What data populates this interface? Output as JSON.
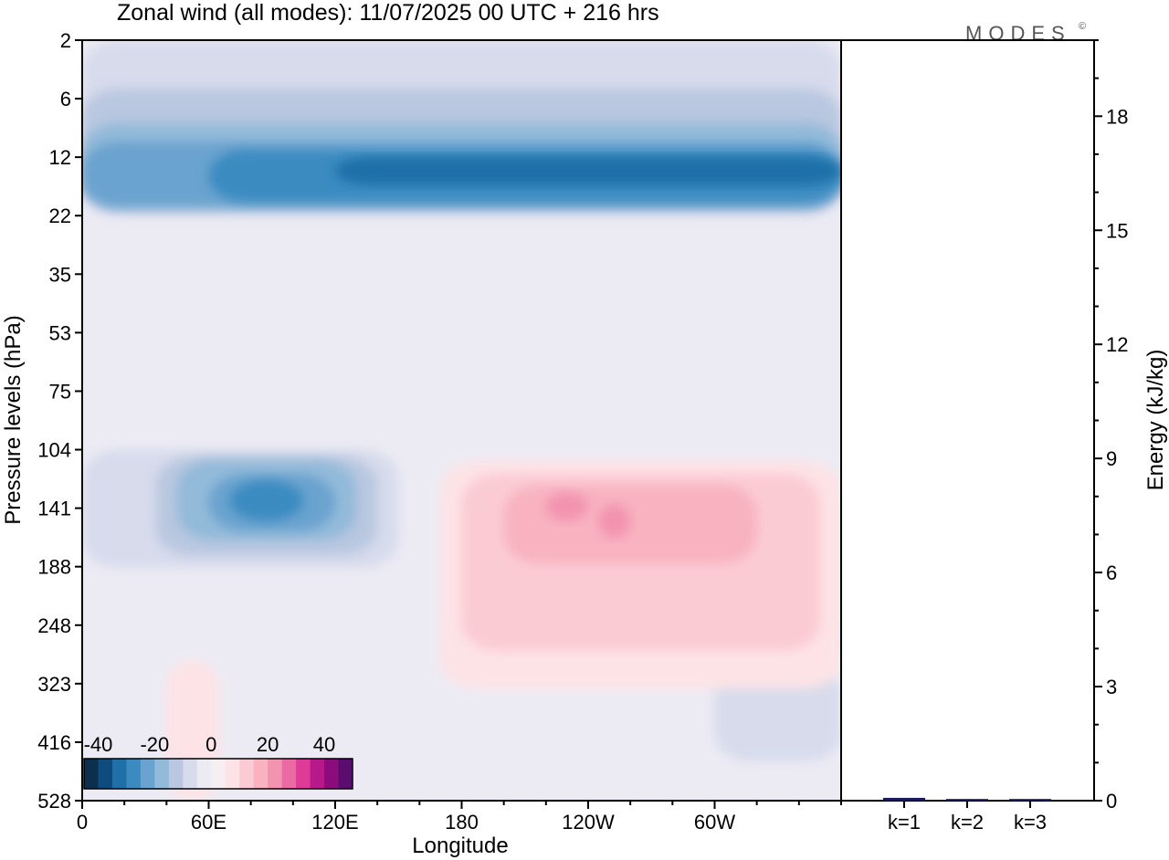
{
  "logo": "MODES",
  "logo_mark": "©",
  "chart_data": {
    "type": "heatmap",
    "title": "Zonal wind (all modes):  11/07/2025  00 UTC  + 216 hrs",
    "main_panel": {
      "xlabel": "Longitude",
      "ylabel": "Pressure levels (hPa)",
      "x_ticks": [
        "0",
        "60E",
        "120E",
        "180",
        "120W",
        "60W"
      ],
      "x_tick_degrees": [
        0,
        60,
        120,
        180,
        240,
        300
      ],
      "x_range_degrees": [
        0,
        360
      ],
      "y_ticks": [
        "2",
        "6",
        "12",
        "22",
        "35",
        "53",
        "75",
        "104",
        "141",
        "188",
        "248",
        "323",
        "416",
        "528"
      ],
      "colorbar": {
        "tick_labels": [
          "-40",
          "-20",
          "0",
          "20",
          "40"
        ],
        "tick_values": [
          -40,
          -20,
          0,
          20,
          40
        ],
        "levels": [
          -45,
          -40,
          -35,
          -30,
          -25,
          -20,
          -15,
          -10,
          -5,
          0,
          5,
          10,
          15,
          20,
          25,
          30,
          35,
          40,
          45,
          50
        ],
        "colors": [
          "#0b2f4d",
          "#0d4c7c",
          "#1f6fa8",
          "#3b8bc1",
          "#6aa3cf",
          "#93bad9",
          "#b9c7e0",
          "#d7dbec",
          "#ecebf4",
          "#f7eef2",
          "#fde3e6",
          "#fbcbd3",
          "#f8b2c0",
          "#f393b0",
          "#ec6aa3",
          "#dd3b97",
          "#b8188a",
          "#8c0c7e",
          "#5a0d6e"
        ]
      },
      "contours": [
        {
          "value": -5,
          "color": "#d7dbec",
          "regions": [
            {
              "lon": 0,
              "p": 2,
              "w": 360,
              "h": 20
            },
            {
              "lon": 0,
              "p": 104,
              "w": 150,
              "h": 85
            },
            {
              "lon": 300,
              "p": 300,
              "w": 60,
              "h": 150
            }
          ]
        },
        {
          "value": -10,
          "color": "#b9c7e0",
          "regions": [
            {
              "lon": 0,
              "p": 5,
              "w": 360,
              "h": 16
            },
            {
              "lon": 35,
              "p": 108,
              "w": 105,
              "h": 70
            }
          ]
        },
        {
          "value": -15,
          "color": "#93bad9",
          "regions": [
            {
              "lon": 0,
              "p": 8,
              "w": 360,
              "h": 12
            },
            {
              "lon": 45,
              "p": 110,
              "w": 85,
              "h": 55
            }
          ]
        },
        {
          "value": -20,
          "color": "#6aa3cf",
          "regions": [
            {
              "lon": 0,
              "p": 10,
              "w": 360,
              "h": 10
            },
            {
              "lon": 60,
              "p": 118,
              "w": 60,
              "h": 40
            }
          ]
        },
        {
          "value": -25,
          "color": "#3b8bc1",
          "regions": [
            {
              "lon": 60,
              "p": 11,
              "w": 300,
              "h": 8
            },
            {
              "lon": 70,
              "p": 122,
              "w": 35,
              "h": 28
            }
          ]
        },
        {
          "value": -30,
          "color": "#1f6fa8",
          "regions": [
            {
              "lon": 120,
              "p": 12,
              "w": 240,
              "h": 4
            }
          ]
        },
        {
          "value": 5,
          "color": "#fde3e6",
          "regions": [
            {
              "lon": 170,
              "p": 110,
              "w": 190,
              "h": 220
            },
            {
              "lon": 40,
              "p": 290,
              "w": 25,
              "h": 240
            }
          ]
        },
        {
          "value": 10,
          "color": "#fbcbd3",
          "regions": [
            {
              "lon": 180,
              "p": 118,
              "w": 170,
              "h": 160
            }
          ]
        },
        {
          "value": 15,
          "color": "#f8b2c0",
          "regions": [
            {
              "lon": 200,
              "p": 125,
              "w": 120,
              "h": 60
            }
          ]
        },
        {
          "value": 20,
          "color": "#f393b0",
          "regions": [
            {
              "lon": 220,
              "p": 130,
              "w": 20,
              "h": 20
            },
            {
              "lon": 245,
              "p": 138,
              "w": 15,
              "h": 25
            }
          ]
        }
      ]
    },
    "energy_panel": {
      "type": "bar",
      "ylabel": "Energy (kJ/kg)",
      "ylim": [
        0,
        20
      ],
      "y_ticks": [
        "0",
        "3",
        "6",
        "9",
        "12",
        "15",
        "18"
      ],
      "y_tick_values": [
        0,
        3,
        6,
        9,
        12,
        15,
        18
      ],
      "categories": [
        "k=1",
        "k=2",
        "k=3"
      ],
      "values": [
        0.05,
        0.02,
        0.02
      ],
      "bar_color": "#1a1a5a"
    }
  }
}
